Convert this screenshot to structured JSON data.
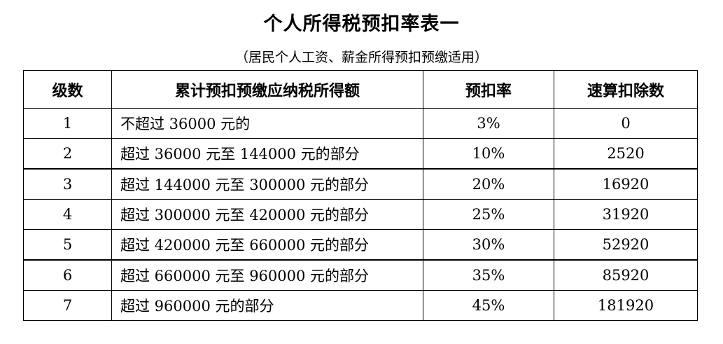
{
  "title": "个人所得税预扣率表一",
  "subtitle": "（居民个人工资、薪金所得预扣预缴适用）",
  "table": {
    "headers": {
      "level": "级数",
      "income": "累计预扣预缴应纳税所得额",
      "rate": "预扣率",
      "deduction": "速算扣除数"
    },
    "rows": [
      {
        "level": "1",
        "income": "不超过 36000 元的",
        "rate": "3%",
        "deduction": "0"
      },
      {
        "level": "2",
        "income": "超过 36000 元至 144000 元的部分",
        "rate": "10%",
        "deduction": "2520"
      },
      {
        "level": "3",
        "income": "超过 144000 元至 300000 元的部分",
        "rate": "20%",
        "deduction": "16920"
      },
      {
        "level": "4",
        "income": "超过 300000 元至 420000 元的部分",
        "rate": "25%",
        "deduction": "31920"
      },
      {
        "level": "5",
        "income": "超过 420000 元至 660000 元的部分",
        "rate": "30%",
        "deduction": "52920"
      },
      {
        "level": "6",
        "income": "超过 660000 元至 960000 元的部分",
        "rate": "35%",
        "deduction": "85920"
      },
      {
        "level": "7",
        "income": "超过 960000 元的部分",
        "rate": "45%",
        "deduction": "181920"
      }
    ]
  }
}
